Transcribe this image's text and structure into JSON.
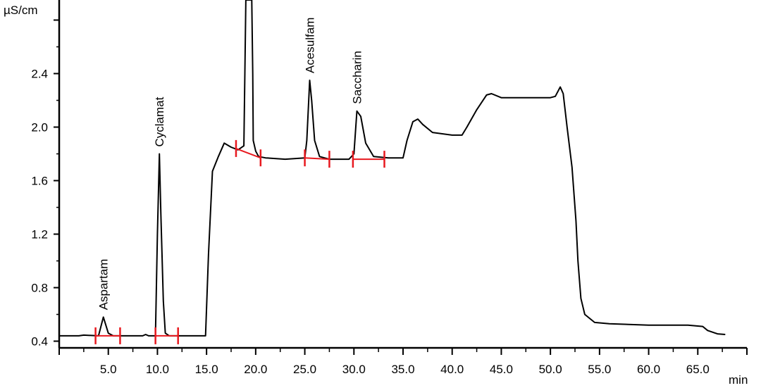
{
  "chart_data": {
    "type": "line",
    "ylabel": "µS/cm",
    "xlabel": "min",
    "xlim": [
      0,
      70
    ],
    "ylim": [
      0.35,
      2.95
    ],
    "x_ticks": [
      5.0,
      10.0,
      15.0,
      20.0,
      25.0,
      30.0,
      35.0,
      40.0,
      45.0,
      50.0,
      55.0,
      60.0,
      65.0
    ],
    "x_tick_labels": [
      "5.0",
      "10.0",
      "15.0",
      "20.0",
      "25.0",
      "30.0",
      "35.0",
      "40.0",
      "45.0",
      "50.0",
      "55.0",
      "60.0",
      "65.0"
    ],
    "y_ticks": [
      0.4,
      0.8,
      1.2,
      1.6,
      2.0,
      2.4
    ],
    "y_tick_labels": [
      "0.4",
      "0.8",
      "1.2",
      "1.6",
      "2.0",
      "2.4"
    ],
    "grid": false,
    "series": [
      {
        "color": "#000000",
        "x": [
          0.0,
          2.0,
          2.5,
          4.0,
          4.5,
          5.0,
          5.5,
          8.5,
          8.8,
          9.1,
          9.8,
          10.0,
          10.2,
          10.35,
          10.6,
          10.8,
          11.2,
          13.0,
          14.9,
          15.2,
          15.6,
          16.2,
          16.8,
          17.5,
          18.2,
          18.8,
          18.9,
          19.0,
          19.05,
          19.6,
          19.7,
          19.75,
          20.0,
          20.3,
          21.0,
          23.0,
          25.0,
          25.2,
          25.5,
          25.7,
          26.0,
          26.5,
          27.5,
          29.5,
          30.0,
          30.3,
          30.7,
          31.2,
          32.0,
          33.5,
          35.0,
          35.4,
          36.0,
          36.5,
          37.0,
          38.0,
          40.0,
          41.0,
          41.5,
          42.5,
          43.5,
          44.0,
          45.0,
          47.0,
          50.0,
          50.5,
          51.0,
          51.3,
          51.7,
          52.2,
          52.6,
          52.8,
          53.1,
          53.5,
          54.5,
          56.0,
          60.0,
          64.0,
          65.5,
          66.0,
          67.0,
          67.8
        ],
        "y": [
          0.44,
          0.44,
          0.445,
          0.44,
          0.58,
          0.46,
          0.44,
          0.44,
          0.45,
          0.44,
          0.44,
          1.2,
          1.8,
          1.35,
          0.7,
          0.46,
          0.44,
          0.44,
          0.44,
          1.05,
          1.67,
          1.78,
          1.88,
          1.85,
          1.83,
          1.86,
          2.4,
          2.95,
          2.95,
          2.95,
          2.4,
          1.9,
          1.82,
          1.78,
          1.77,
          1.76,
          1.77,
          1.9,
          2.35,
          2.2,
          1.9,
          1.78,
          1.76,
          1.76,
          1.8,
          2.12,
          2.08,
          1.88,
          1.78,
          1.77,
          1.77,
          1.9,
          2.04,
          2.06,
          2.02,
          1.96,
          1.94,
          1.94,
          2.0,
          2.13,
          2.24,
          2.25,
          2.22,
          2.22,
          2.22,
          2.23,
          2.3,
          2.25,
          2.0,
          1.7,
          1.3,
          1.0,
          0.72,
          0.6,
          0.54,
          0.53,
          0.52,
          0.52,
          0.51,
          0.48,
          0.455,
          0.45
        ]
      }
    ],
    "peaks": [
      {
        "name": "Aspartam",
        "x": 4.5,
        "y": 0.58
      },
      {
        "name": "Cyclamat",
        "x": 10.2,
        "y": 1.8
      },
      {
        "name": "Acesulfam",
        "x": 25.5,
        "y": 2.35
      },
      {
        "name": "Saccharin",
        "x": 30.3,
        "y": 2.12
      }
    ],
    "integration_marks": [
      {
        "color": "#e8191f",
        "ticks": [
          3.7,
          6.2
        ],
        "baseline": [
          0.44,
          0.44
        ]
      },
      {
        "color": "#e8191f",
        "ticks": [
          9.8,
          12.1
        ],
        "baseline": [
          0.44,
          0.44
        ]
      },
      {
        "color": "#e8191f",
        "ticks": [
          18.0,
          20.5
        ],
        "baseline": [
          1.84,
          1.77
        ]
      },
      {
        "color": "#e8191f",
        "ticks": [
          25.0,
          27.5
        ],
        "baseline": [
          1.77,
          1.76
        ]
      },
      {
        "color": "#e8191f",
        "ticks": [
          29.9,
          33.1
        ],
        "baseline": [
          1.76,
          1.76
        ]
      }
    ]
  }
}
